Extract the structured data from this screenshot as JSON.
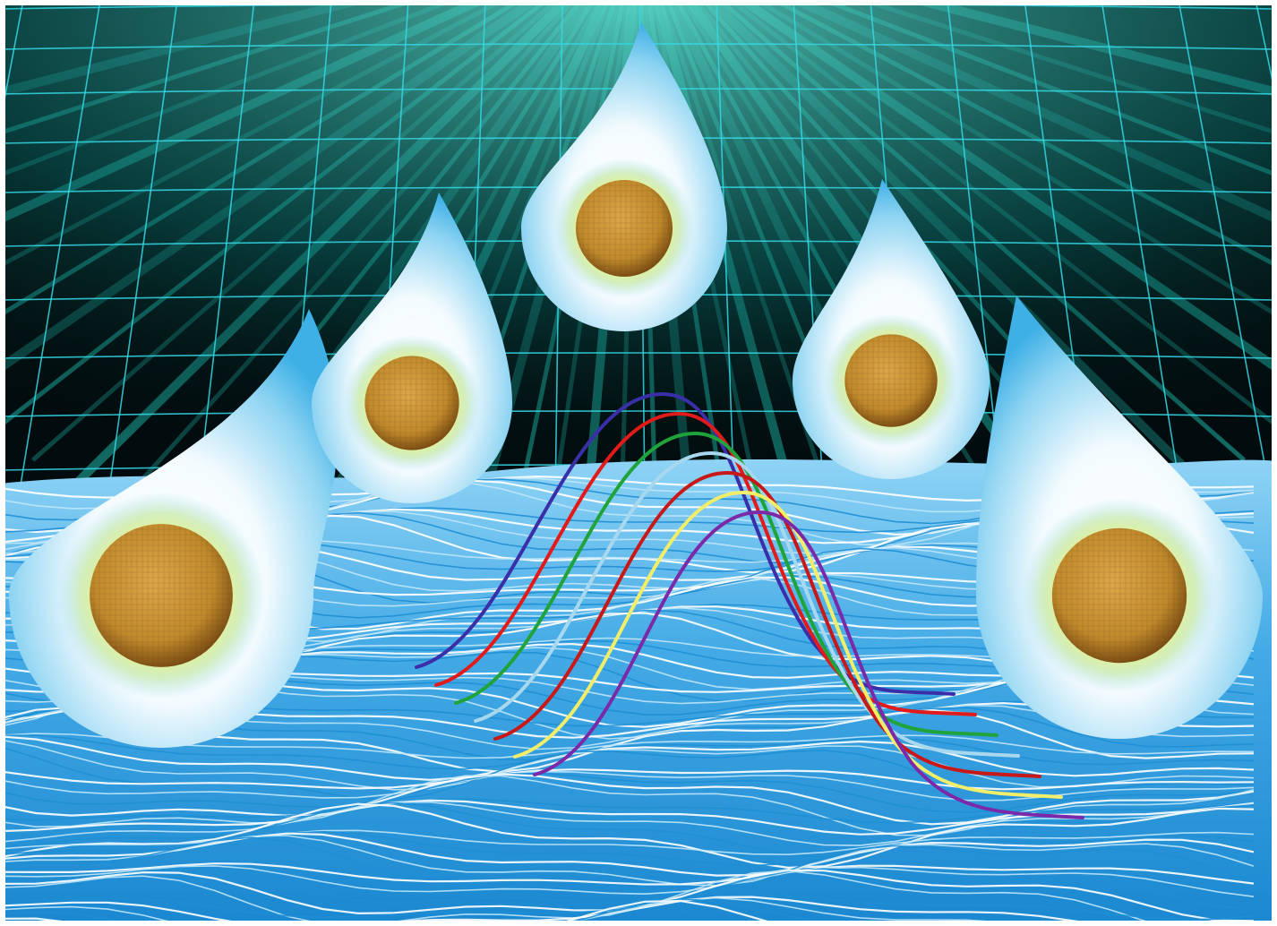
{
  "scene": {
    "description_free": true,
    "colors": {
      "sky_dark": "#020c0e",
      "grid_line": "#35d8e6",
      "ray": "#1fb5a8",
      "water_deep": "#1f8fd4",
      "water_mid": "#3aa8e8",
      "water_light": "#ffffff",
      "drop_edge": "#5cc3ee",
      "drop_inner": "#ffffff",
      "halo": "#e2f08a",
      "core": "#c8902f",
      "core_dark": "#8a5a18"
    },
    "curve_colors": [
      "#3a2fa8",
      "#e21a1a",
      "#1fa33a",
      "#a8d8ee",
      "#c81818",
      "#f2ee6a",
      "#7a2aa8"
    ],
    "droplet_count": 5,
    "curve_count": 7
  }
}
